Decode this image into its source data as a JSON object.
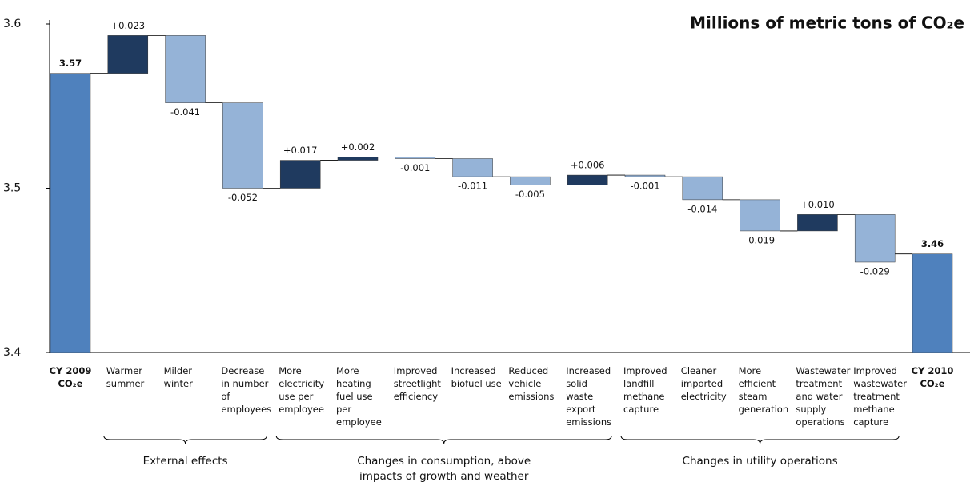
{
  "chart_data": {
    "type": "waterfall",
    "title": "Millions of metric tons of CO₂e",
    "categories": [
      "CY 2009 CO₂e",
      "Warmer summer",
      "Milder winter",
      "Decrease in number of employees",
      "More electricity use per employee",
      "More heating fuel use per employee",
      "Improved streetlight efficiency",
      "Increased biofuel use",
      "Reduced vehicle emissions",
      "Increased solid waste export emissions",
      "Improved landfill methane capture",
      "Cleaner imported electricity",
      "More efficient steam generation",
      "Wastewater treatment and water supply operations",
      "Improved wastewater treatment methane capture",
      "CY 2010 CO₂e"
    ],
    "values": [
      3.57,
      0.023,
      -0.041,
      -0.052,
      0.017,
      0.002,
      -0.001,
      -0.011,
      -0.005,
      0.006,
      -0.001,
      -0.014,
      -0.019,
      0.01,
      -0.029,
      3.46
    ],
    "value_labels": [
      "3.57",
      "+0.023",
      "-0.041",
      "-0.052",
      "+0.017",
      "+0.002",
      "-0.001",
      "-0.011",
      "-0.005",
      "+0.006",
      "-0.001",
      "-0.014",
      "-0.019",
      "+0.010",
      "-0.029",
      "3.46"
    ],
    "measure": [
      "absolute",
      "relative",
      "relative",
      "relative",
      "relative",
      "relative",
      "relative",
      "relative",
      "relative",
      "relative",
      "relative",
      "relative",
      "relative",
      "relative",
      "relative",
      "absolute"
    ],
    "colors": {
      "total": "#4f81bd",
      "increase": "#1f3a5f",
      "decrease": "#95b3d7"
    },
    "ylim": [
      3.4,
      3.6
    ],
    "yticks": [
      3.4,
      3.5,
      3.6
    ],
    "groups": [
      "External effects",
      "Changes in consumption, above impacts of growth and weather",
      "Changes in utility operations"
    ]
  }
}
